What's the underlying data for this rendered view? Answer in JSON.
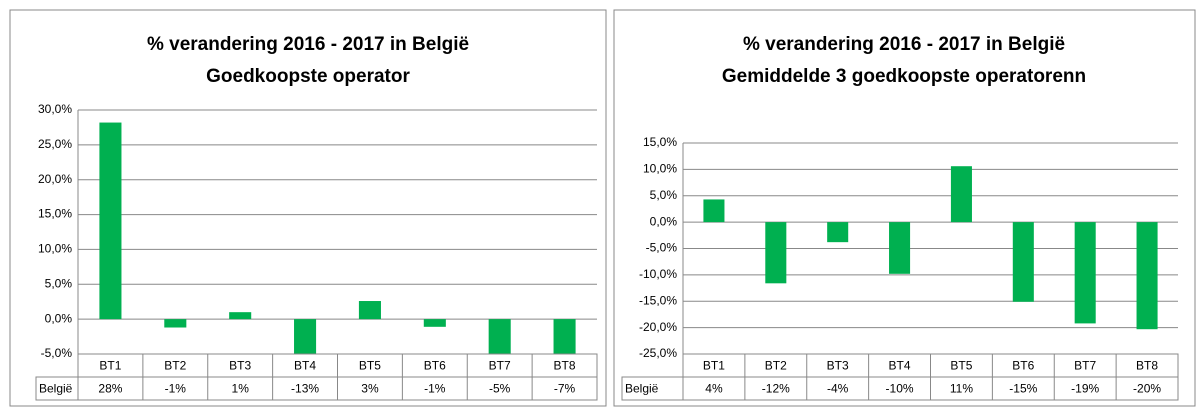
{
  "chart_data": [
    {
      "type": "bar",
      "title": "% verandering 2016 - 2017 in België",
      "subtitle": "Goedkoopste operator",
      "categories": [
        "BT1",
        "BT2",
        "BT3",
        "BT4",
        "BT5",
        "BT6",
        "BT7",
        "BT8"
      ],
      "series": [
        {
          "name": "België",
          "color": "#00b050",
          "values": [
            28.2,
            -1.2,
            1.0,
            -13,
            2.6,
            -1.1,
            -5.0,
            -7
          ],
          "value_labels": [
            "28%",
            "-1%",
            "1%",
            "-13%",
            "3%",
            "-1%",
            "-5%",
            "-7%"
          ]
        }
      ],
      "ylim": [
        -5,
        30
      ],
      "yticks": [
        {
          "value": -5,
          "label": "-5,0%"
        },
        {
          "value": 0,
          "label": "0,0%"
        },
        {
          "value": 5,
          "label": "5,0%"
        },
        {
          "value": 10,
          "label": "10,0%"
        },
        {
          "value": 15,
          "label": "15,0%"
        },
        {
          "value": 20,
          "label": "20,0%"
        },
        {
          "value": 25,
          "label": "25,0%"
        },
        {
          "value": 30,
          "label": "30,0%"
        }
      ],
      "grid": true
    },
    {
      "type": "bar",
      "title": "% verandering 2016 - 2017 in België",
      "subtitle": "Gemiddelde 3 goedkoopste operatorenn",
      "categories": [
        "BT1",
        "BT2",
        "BT3",
        "BT4",
        "BT5",
        "BT6",
        "BT7",
        "BT8"
      ],
      "series": [
        {
          "name": "België",
          "color": "#00b050",
          "values": [
            4.3,
            -11.6,
            -3.8,
            -9.8,
            10.6,
            -15.1,
            -19.2,
            -20.3
          ],
          "value_labels": [
            "4%",
            "-12%",
            "-4%",
            "-10%",
            "11%",
            "-15%",
            "-19%",
            "-20%"
          ]
        }
      ],
      "ylim": [
        -25,
        15
      ],
      "yticks": [
        {
          "value": -25,
          "label": "-25,0%"
        },
        {
          "value": -20,
          "label": "-20,0%"
        },
        {
          "value": -15,
          "label": "-15,0%"
        },
        {
          "value": -10,
          "label": "-10,0%"
        },
        {
          "value": -5,
          "label": "-5,0%"
        },
        {
          "value": 0,
          "label": "0,0%"
        },
        {
          "value": 5,
          "label": "5,0%"
        },
        {
          "value": 10,
          "label": "10,0%"
        },
        {
          "value": 15,
          "label": "15,0%"
        }
      ],
      "grid": true
    }
  ]
}
